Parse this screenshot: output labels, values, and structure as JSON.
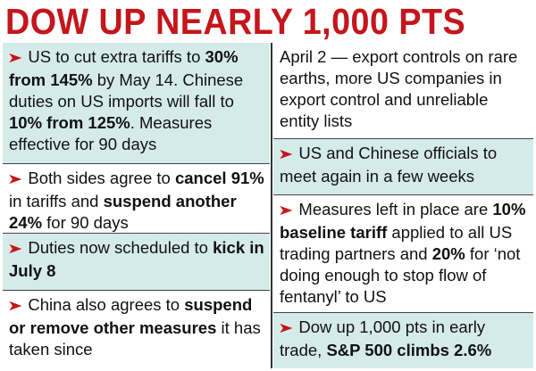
{
  "headline": "DOW UP NEARLY 1,000 PTS",
  "arrow_glyph": "➤",
  "colors": {
    "headline": "#c4161c",
    "arrow": "#c4161c",
    "shade": "#d5ebea",
    "text": "#111111"
  },
  "left_column": [
    {
      "parts": [
        "US to cut extra tariffs to ",
        "30% from 145%",
        " by May 14. Chinese duties on US imports will fall to ",
        "10% from 125%",
        ". Measures effective for 90 days"
      ]
    },
    {
      "parts": [
        "Both sides agree to ",
        "cancel 91%",
        " in tariffs and ",
        "suspend another 24%",
        " for 90 days"
      ]
    },
    {
      "parts": [
        "Duties now scheduled to ",
        "kick in July 8"
      ]
    },
    {
      "parts": [
        "China also agrees to ",
        "suspend or remove other measures",
        " it has taken since"
      ]
    }
  ],
  "right_column": [
    {
      "parts": [
        "April 2 — export controls on rare earths, more US companies in export control and unreliable entity lists"
      ]
    },
    {
      "parts": [
        "US and Chinese officials to meet again in a few weeks"
      ]
    },
    {
      "parts": [
        "Measures left in place are ",
        "10% baseline tariff",
        " applied to all US trading partners and ",
        "20%",
        " for ‘not doing enough to stop flow of fentanyl’ to US"
      ]
    },
    {
      "parts": [
        "Dow up 1,000 pts in early trade, ",
        "S&P 500 climbs 2.6%"
      ]
    }
  ]
}
